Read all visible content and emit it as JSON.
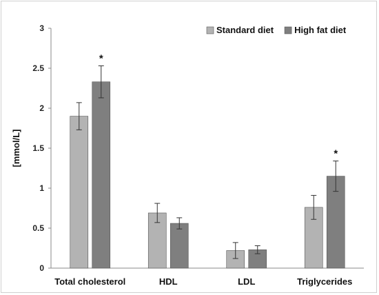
{
  "chart_data": {
    "type": "bar",
    "title": "",
    "xlabel": "",
    "ylabel": "[mmol/L]",
    "ylim": [
      0,
      3
    ],
    "yticks": [
      "0",
      "0.5",
      "1",
      "1.5",
      "2",
      "2.5",
      "3"
    ],
    "grid": false,
    "legend_position": "top-right",
    "categories": [
      "Total cholesterol",
      "HDL",
      "LDL",
      "Triglycerides"
    ],
    "series": [
      {
        "name": "Standard diet",
        "color": "#b3b3b3",
        "values": [
          1.9,
          0.69,
          0.22,
          0.76
        ],
        "errors": [
          0.17,
          0.12,
          0.1,
          0.15
        ]
      },
      {
        "name": "High fat diet",
        "color": "#7f7f7f",
        "values": [
          2.33,
          0.56,
          0.23,
          1.15
        ],
        "errors": [
          0.2,
          0.07,
          0.05,
          0.19
        ]
      }
    ],
    "annotations": [
      {
        "category": "Total cholesterol",
        "series": "High fat diet",
        "text": "*"
      },
      {
        "category": "Triglycerides",
        "series": "High fat diet",
        "text": "*"
      }
    ]
  }
}
